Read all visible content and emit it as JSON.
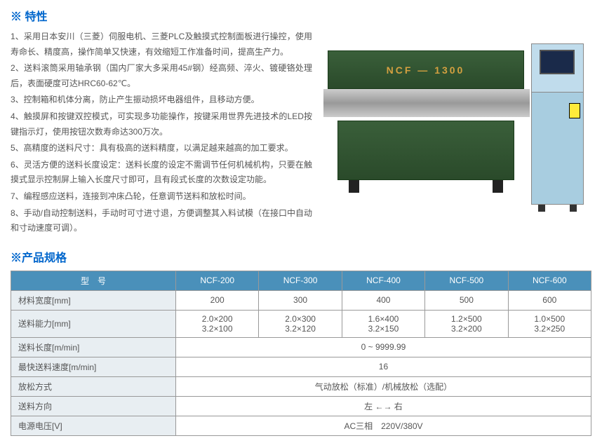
{
  "features": {
    "title": "※ 特性",
    "items": [
      "1、采用日本安川（三菱）伺服电机、三菱PLC及触摸式控制面板进行操控，使用寿命长、精度高，操作简单又快速，有效缩短工作准备时间，提高生产力。",
      "2、送料滚筒采用轴承钢（国内厂家大多采用45#钢）经高频、淬火、镀硬铬处理后，表面硬度可达HRC60-62℃。",
      "3、控制箱和机体分离，防止产生振动损坏电器组件，且移动方便。",
      "4、触摸屏和按键双控模式，可实现多功能操作，按键采用世界先进技术的LED按键指示灯，使用按钮次数寿命达300万次。",
      "5、高精度的送料尺寸：具有极高的送料精度，以满足越来越高的加工要求。",
      "6、灵活方便的送料长度设定：送料长度的设定不需调节任何机械机构，只要在触摸式显示控制屏上输入长度尺寸即可，且有段式长度的次数设定功能。",
      "7、编程感应送料，连接到冲床凸轮，任意调节送料和放松时间。",
      "8、手动/自动控制送料，手动时可寸进寸退，方便调整其入料试模（在接口中自动和寸动速度可调）。"
    ]
  },
  "machine_label": "NCF — 1300",
  "specs": {
    "title": "※产品规格",
    "header_model": "型　号",
    "models": [
      "NCF-200",
      "NCF-300",
      "NCF-400",
      "NCF-500",
      "NCF-600"
    ],
    "rows": {
      "material_width": {
        "label": "材料宽度[mm]",
        "values": [
          "200",
          "300",
          "400",
          "500",
          "600"
        ]
      },
      "feed_capacity": {
        "label": "送料能力[mm]",
        "values": [
          "2.0×200\n3.2×100",
          "2.0×300\n3.2×120",
          "1.6×400\n3.2×150",
          "1.2×500\n3.2×200",
          "1.0×500\n3.2×250"
        ]
      },
      "feed_length": {
        "label": "送料长度[m/min]",
        "value": "0 ~ 9999.99"
      },
      "max_speed": {
        "label": "最快送料速度[m/min]",
        "value": "16"
      },
      "release": {
        "label": "放松方式",
        "value": "气动放松（标准）/机械放松（选配）"
      },
      "direction": {
        "label": "送料方向",
        "value": "左 ←→ 右"
      },
      "voltage": {
        "label": "电源电压[V]",
        "value": "AC三相　220V/380V"
      }
    }
  },
  "colors": {
    "title": "#0066cc",
    "table_header_bg": "#4a90ba",
    "row_header_bg": "#e8eef2",
    "machine_green": "#2a4a2a",
    "control_blue": "#a8cde0"
  }
}
